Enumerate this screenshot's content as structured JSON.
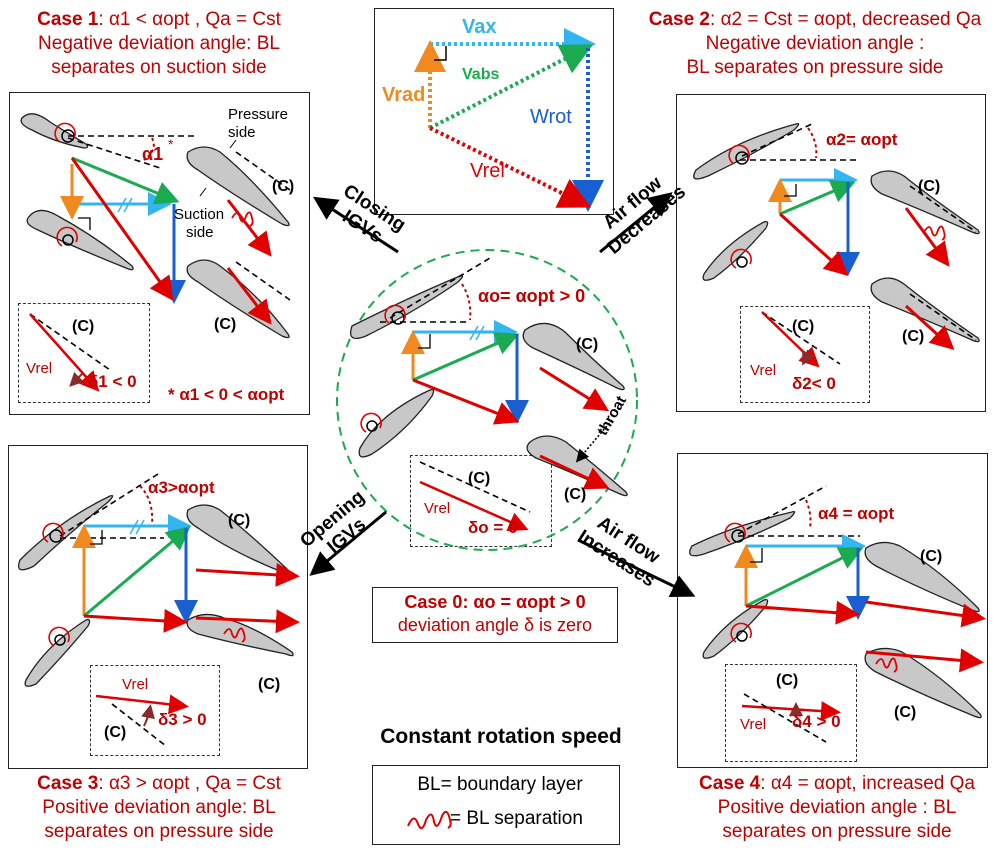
{
  "case1": {
    "title": "Case 1",
    "alpha_cond": ": α1 < αopt , Qa = Cst",
    "line2": "Negative deviation angle: BL",
    "line3": "separates on suction side",
    "alpha_label": "α1",
    "asterisk": "*",
    "pressure": "Pressure",
    "pressure2": "side",
    "suction": "Suction",
    "suction2": "side",
    "delta": "δ1 < 0",
    "footnote": "* α1 < 0 < αopt",
    "c": "(C)"
  },
  "case2": {
    "title": "Case 2",
    "alpha_cond": ": α2 = Cst = αopt, decreased Qa",
    "line2": "Negative deviation angle :",
    "line3": "BL separates on pressure side",
    "alpha_label": "α2= αopt",
    "delta": "δ2< 0",
    "c": "(C)"
  },
  "case3": {
    "title": "Case 3",
    "alpha_cond": ": α3 > αopt , Qa = Cst",
    "line2": "Positive deviation angle: BL",
    "line3": "separates on pressure side",
    "alpha_label": "α3>αopt",
    "delta": "δ3 > 0",
    "c": "(C)"
  },
  "case4": {
    "title": "Case 4",
    "alpha_cond": ": α4 = αopt, increased Qa",
    "line2": "Positive deviation angle : BL",
    "line3": "separates on pressure side",
    "alpha_label": "α4 = αopt",
    "delta": "δ4 > 0",
    "c": "(C)"
  },
  "case0": {
    "title": "Case 0",
    "alpha_cond": ": αo = αopt > 0",
    "line2": "deviation angle δ is zero",
    "alpha_label": "αo= αopt > 0",
    "delta": "δo = 0",
    "throat": "throat",
    "c": "(C)"
  },
  "velocity": {
    "v_ax": "Vax",
    "v_abs": "Vabs",
    "v_rad": "Vrad",
    "w_rot": "Wrot",
    "v_rel": "Vrel"
  },
  "arrows": {
    "closing": "Closing",
    "closing2": "IGVs",
    "opening": "Opening",
    "opening2": "IGVs",
    "decreases": "Air flow",
    "decreases2": "Decreases",
    "increases": "Air flow",
    "increases2": "Increases"
  },
  "title": "Constant rotation speed",
  "legend": {
    "bl": "BL= boundary layer",
    "sep": "= BL separation"
  },
  "colors": {
    "red": "#e00000",
    "green": "#1aaa50",
    "blue": "#1a5fd0",
    "cyan": "#33b5f0",
    "orange": "#f08a1e",
    "blade": "#c8c8c8",
    "caption": "#c00000",
    "circle_dash": "#1aaa50"
  }
}
